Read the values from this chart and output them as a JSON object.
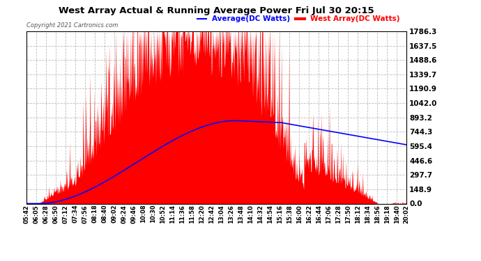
{
  "title": "West Array Actual & Running Average Power Fri Jul 30 20:15",
  "copyright": "Copyright 2021 Cartronics.com",
  "legend_average": "Average(DC Watts)",
  "legend_west": "West Array(DC Watts)",
  "yticks": [
    0.0,
    148.9,
    297.7,
    446.6,
    595.4,
    744.3,
    893.2,
    1042.0,
    1190.9,
    1339.7,
    1488.6,
    1637.5,
    1786.3
  ],
  "ymax": 1786.3,
  "ymin": 0.0,
  "bg_color": "#ffffff",
  "plot_bg_color": "#ffffff",
  "grid_color": "#aaaaaa",
  "title_color": "#000000",
  "fill_color": "#ff0000",
  "avg_line_color": "#0000ff",
  "west_line_color": "#ff0000",
  "x_tick_labels": [
    "05:42",
    "06:05",
    "06:28",
    "06:50",
    "07:12",
    "07:34",
    "07:56",
    "08:18",
    "08:40",
    "09:02",
    "09:24",
    "09:46",
    "10:08",
    "10:30",
    "10:52",
    "11:14",
    "11:36",
    "11:58",
    "12:20",
    "12:42",
    "13:04",
    "13:26",
    "13:48",
    "14:10",
    "14:32",
    "14:54",
    "15:16",
    "15:38",
    "16:00",
    "16:22",
    "16:44",
    "17:06",
    "17:28",
    "17:50",
    "18:12",
    "18:34",
    "18:56",
    "19:18",
    "19:40",
    "20:02"
  ]
}
